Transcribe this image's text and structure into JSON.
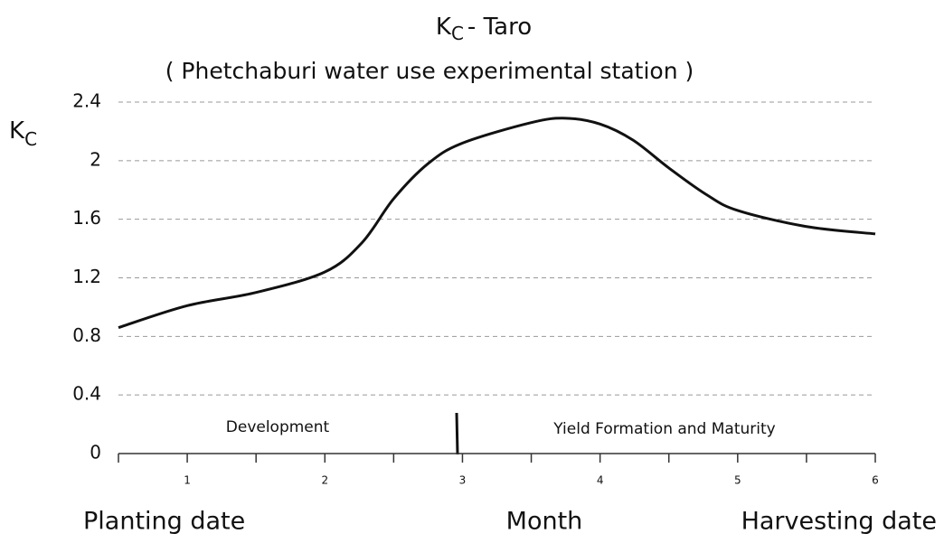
{
  "chart_data": {
    "type": "line",
    "title": {
      "main": "K",
      "sub": "C",
      "rest": "- Taro"
    },
    "subtitle": "( Phetchaburi water use experimental station )",
    "ylabel": {
      "main": "K",
      "sub": "C"
    },
    "xlabels": {
      "left": "Planting date",
      "center": "Month",
      "right": "Harvesting date"
    },
    "annotations": [
      "Development",
      "Yield Formation and Maturity"
    ],
    "x": [
      0.5,
      1,
      1.5,
      2,
      2.27,
      2.5,
      2.75,
      3,
      3.5,
      3.75,
      4,
      4.24,
      4.5,
      4.77,
      5,
      5.5,
      6
    ],
    "series": [
      {
        "name": "Kc",
        "color": "#111111",
        "values": [
          0.86,
          1.01,
          1.1,
          1.24,
          1.44,
          1.74,
          1.98,
          2.12,
          2.26,
          2.29,
          2.25,
          2.14,
          1.95,
          1.77,
          1.66,
          1.55,
          1.5
        ]
      }
    ],
    "xlim": [
      0.5,
      6
    ],
    "xticks": [
      1,
      2,
      3,
      4,
      5,
      6
    ],
    "xticks_minor": [
      0.5,
      1.5,
      2.5,
      3.5,
      4.5,
      5.5
    ],
    "ylim": [
      0,
      2.4
    ],
    "yticks": [
      0,
      0.4,
      0.8,
      1.2,
      1.6,
      2,
      2.4
    ],
    "grid": true
  }
}
